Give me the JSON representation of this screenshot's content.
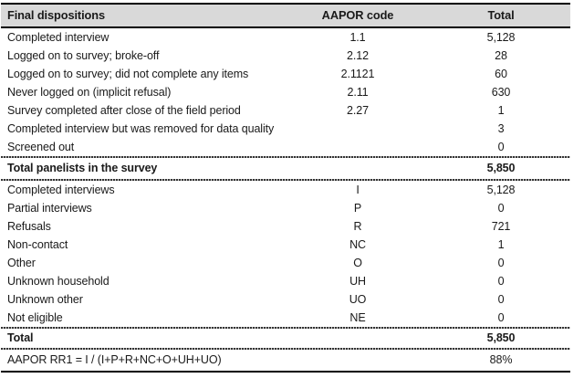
{
  "chart_data": {
    "type": "table",
    "title": "",
    "columns": [
      "Final dispositions",
      "AAPOR code",
      "Total"
    ],
    "rows": [
      [
        "Completed interview",
        "1.1",
        "5,128"
      ],
      [
        "Logged on to survey; broke-off",
        "2.12",
        "28"
      ],
      [
        "Logged on to survey; did not complete any items",
        "2.1121",
        "60"
      ],
      [
        "Never logged on (implicit refusal)",
        "2.11",
        "630"
      ],
      [
        "Survey completed after close of the field period",
        "2.27",
        "1"
      ],
      [
        "Completed interview but was removed for data quality",
        "",
        "3"
      ],
      [
        "Screened out",
        "",
        "0"
      ],
      [
        "Total panelists in the survey",
        "",
        "5,850"
      ],
      [
        "Completed interviews",
        "I",
        "5,128"
      ],
      [
        "Partial interviews",
        "P",
        "0"
      ],
      [
        "Refusals",
        "R",
        "721"
      ],
      [
        "Non-contact",
        "NC",
        "1"
      ],
      [
        "Other",
        "O",
        "0"
      ],
      [
        "Unknown household",
        "UH",
        "0"
      ],
      [
        "Unknown other",
        "UO",
        "0"
      ],
      [
        "Not eligible",
        "NE",
        "0"
      ],
      [
        "Total",
        "",
        "5,850"
      ],
      [
        "AAPOR RR1 = I / (I+P+R+NC+O+UH+UO)",
        "",
        "88%"
      ]
    ]
  },
  "table": {
    "header": {
      "dispositions": "Final dispositions",
      "code": "AAPOR code",
      "total": "Total"
    },
    "section1": [
      {
        "label": "Completed interview",
        "code": "1.1",
        "total": "5,128"
      },
      {
        "label": "Logged on to survey; broke-off",
        "code": "2.12",
        "total": "28"
      },
      {
        "label": "Logged on to survey; did not complete any items",
        "code": "2.1121",
        "total": "60"
      },
      {
        "label": "Never logged on (implicit refusal)",
        "code": "2.11",
        "total": "630"
      },
      {
        "label": "Survey completed after close of the field period",
        "code": "2.27",
        "total": "1"
      },
      {
        "label": "Completed interview but was removed for data quality",
        "code": "",
        "total": "3"
      },
      {
        "label": "Screened out",
        "code": "",
        "total": "0"
      }
    ],
    "total_row_1": {
      "label": "Total panelists in the survey",
      "total": "5,850"
    },
    "section2": [
      {
        "label": "Completed interviews",
        "code": "I",
        "total": "5,128"
      },
      {
        "label": "Partial interviews",
        "code": "P",
        "total": "0"
      },
      {
        "label": "Refusals",
        "code": "R",
        "total": "721"
      },
      {
        "label": "Non-contact",
        "code": "NC",
        "total": "1"
      },
      {
        "label": "Other",
        "code": "O",
        "total": "0"
      },
      {
        "label": "Unknown household",
        "code": "UH",
        "total": "0"
      },
      {
        "label": "Unknown other",
        "code": "UO",
        "total": "0"
      },
      {
        "label": "Not eligible",
        "code": "NE",
        "total": "0"
      }
    ],
    "total_row_2": {
      "label": "Total",
      "total": "5,850"
    },
    "rate_row": {
      "label": "AAPOR RR1 = I / (I+P+R+NC+O+UH+UO)",
      "total": "88%"
    }
  },
  "colors": {
    "header_background": "#d9d9d9",
    "text": "#1a1a1a",
    "rule": "#000000"
  }
}
